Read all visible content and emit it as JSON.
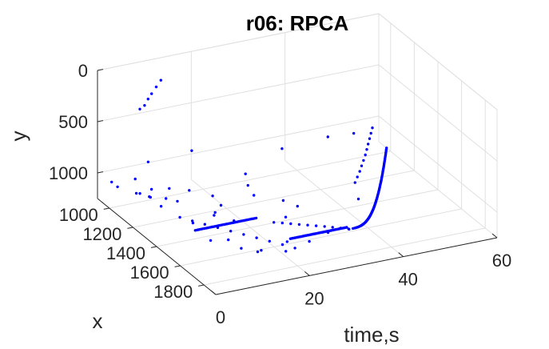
{
  "chart_data": {
    "type": "scatter",
    "view": "3d",
    "title": "r06: RPCA",
    "xlabel": "x",
    "ylabel": "y",
    "zlabel": "time,s",
    "x_ticks": [
      "1000",
      "1200",
      "1400",
      "1600",
      "1800"
    ],
    "y_ticks": [
      "0",
      "500",
      "1000"
    ],
    "t_ticks": [
      "0",
      "20",
      "40",
      "60"
    ],
    "xlim": [
      900,
      1900
    ],
    "ylim": [
      0,
      1250
    ],
    "tlim": [
      0,
      60
    ],
    "grid": true,
    "marker_color": "#0000ff",
    "series": [
      {
        "points": [
          [
            1200,
            1245,
            10.0
          ],
          [
            1250,
            1245,
            11.4
          ],
          [
            1300,
            1245,
            12.8
          ],
          [
            1350,
            1245,
            14.3
          ],
          [
            1400,
            1245,
            15.8
          ],
          [
            1450,
            1245,
            17.3
          ],
          [
            1500,
            1245,
            18.8
          ],
          [
            1550,
            1245,
            20.3
          ],
          [
            1600,
            1245,
            21.8
          ],
          [
            1650,
            1245,
            23.2
          ],
          [
            1400,
            1245,
            25.0
          ],
          [
            1420,
            1245,
            26.3
          ],
          [
            1440,
            1245,
            27.6
          ],
          [
            1460,
            1245,
            28.9
          ],
          [
            1480,
            1245,
            30.2
          ],
          [
            1500,
            1245,
            31.5
          ],
          [
            1520,
            1245,
            32.8
          ],
          [
            1540,
            1245,
            34.0
          ],
          [
            1560,
            1245,
            35.2
          ],
          [
            1580,
            1245,
            36.4
          ],
          [
            1500,
            900,
            39.8
          ],
          [
            1500,
            850,
            40.3
          ],
          [
            1500,
            800,
            40.8
          ],
          [
            1500,
            750,
            41.2
          ],
          [
            1500,
            700,
            41.6
          ],
          [
            1500,
            650,
            42.0
          ],
          [
            1500,
            600,
            42.3
          ],
          [
            1500,
            550,
            42.6
          ],
          [
            1500,
            500,
            42.9
          ],
          [
            1500,
            450,
            43.2
          ],
          [
            1500,
            400,
            43.5
          ],
          [
            1100,
            200,
            5.0
          ],
          [
            1070,
            180,
            6.5
          ],
          [
            1040,
            170,
            8.0
          ],
          [
            1000,
            160,
            10.0
          ],
          [
            960,
            150,
            12.0
          ],
          [
            1080,
            250,
            4.5
          ],
          [
            1300,
            500,
            10.0
          ],
          [
            1150,
            700,
            4.5
          ],
          [
            1400,
            800,
            2.0
          ],
          [
            1100,
            900,
            3.0
          ],
          [
            1050,
            1100,
            4.5
          ],
          [
            1100,
            1100,
            6.0
          ],
          [
            1000,
            1150,
            9.0
          ],
          [
            1150,
            1000,
            9.0
          ],
          [
            1200,
            1000,
            12.0
          ],
          [
            1100,
            1200,
            12.0
          ],
          [
            1200,
            1100,
            17.0
          ],
          [
            1250,
            1150,
            17.5
          ],
          [
            1300,
            1150,
            15.0
          ],
          [
            1400,
            1150,
            16.5
          ],
          [
            1450,
            1000,
            11.0
          ],
          [
            1700,
            1150,
            14.0
          ],
          [
            1500,
            1100,
            25.0
          ],
          [
            1400,
            1050,
            27.0
          ],
          [
            1300,
            950,
            22.0
          ],
          [
            1350,
            1000,
            22.0
          ],
          [
            1600,
            900,
            25.0
          ],
          [
            1350,
            600,
            28.0
          ],
          [
            1200,
            950,
            24.0
          ],
          [
            1500,
            400,
            34.0
          ],
          [
            1600,
            300,
            37.0
          ],
          [
            1600,
            950,
            38.0
          ],
          [
            1000,
            1000,
            0.5
          ],
          [
            1050,
            1000,
            0.5
          ],
          [
            1100,
            1050,
            4.0
          ],
          [
            1150,
            1050,
            5.0
          ],
          [
            1200,
            1100,
            6.0
          ],
          [
            1350,
            1150,
            9.0
          ],
          [
            1500,
            1180,
            9.0
          ],
          [
            1550,
            1150,
            11.5
          ],
          [
            1600,
            1200,
            13.0
          ],
          [
            1650,
            1200,
            16.0
          ],
          [
            1750,
            1050,
            19.0
          ],
          [
            1700,
            1200,
            20.0
          ],
          [
            1700,
            1150,
            25.0
          ],
          [
            1700,
            1100,
            29.0
          ]
        ]
      }
    ]
  }
}
